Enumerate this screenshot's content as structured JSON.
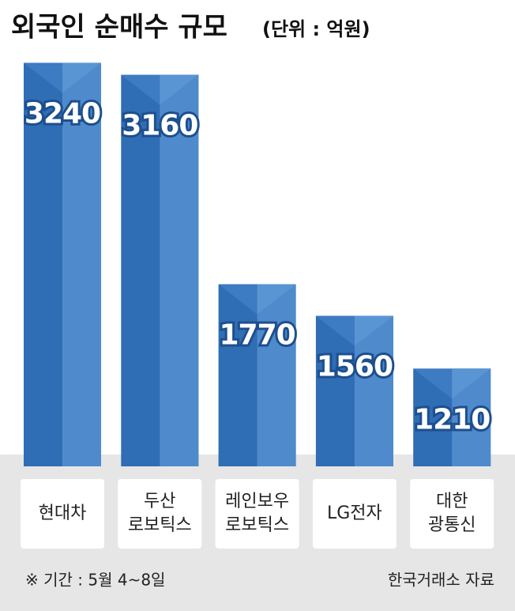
{
  "chart_data": {
    "type": "bar",
    "title": "외국인 순매수 규모",
    "subtitle": "(단위 : 억원)",
    "categories": [
      "현대차",
      "두산\n로보틱스",
      "레인보우\n로보틱스",
      "LG전자",
      "대한\n광통신"
    ],
    "values": [
      3240,
      3160,
      1770,
      1560,
      1210
    ],
    "color": "#2f6db5",
    "note": "※ 기간 : 5월 4~8일",
    "source": "한국거래소 자료"
  }
}
